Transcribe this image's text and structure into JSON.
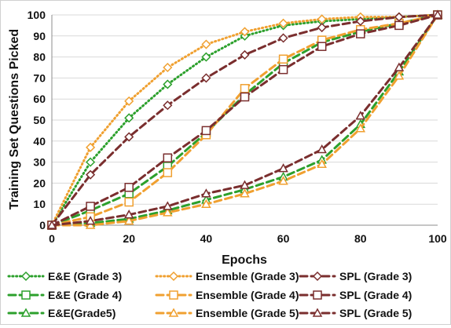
{
  "chart_data": {
    "type": "line",
    "xlabel": "Epochs",
    "ylabel": "Training Set Questions Picked",
    "xlim": [
      0,
      100
    ],
    "ylim": [
      0,
      100
    ],
    "x_ticks": [
      "0",
      "20",
      "40",
      "60",
      "80",
      "100"
    ],
    "y_ticks": [
      "0",
      "10",
      "20",
      "30",
      "40",
      "50",
      "60",
      "70",
      "80",
      "90",
      "100"
    ],
    "grid": "horizontal",
    "legend_position": "bottom",
    "x": [
      0,
      10,
      20,
      30,
      40,
      50,
      60,
      70,
      80,
      90,
      100
    ],
    "series": [
      {
        "name": "E&E (Grade 3)",
        "color": "#2ca02c",
        "dash": "dotted",
        "marker": "diamond",
        "values": [
          0,
          30,
          51,
          67,
          80,
          90,
          95,
          97,
          98,
          99,
          100
        ]
      },
      {
        "name": "E&E (Grade 4)",
        "color": "#2ca02c",
        "dash": "dashed",
        "marker": "square",
        "values": [
          0,
          7,
          15,
          28,
          44,
          62,
          77,
          87,
          92,
          96,
          100
        ]
      },
      {
        "name": "E&E(Grade5)",
        "color": "#2ca02c",
        "dash": "dashed",
        "marker": "triangle",
        "values": [
          0,
          1,
          3,
          7,
          12,
          17,
          23,
          31,
          48,
          73,
          100
        ]
      },
      {
        "name": "Ensemble (Grade 3)",
        "color": "#f0a030",
        "dash": "dotted",
        "marker": "diamond",
        "values": [
          0,
          37,
          59,
          75,
          86,
          92,
          96,
          98,
          99,
          99,
          100
        ]
      },
      {
        "name": "Ensemble (Grade 4)",
        "color": "#f0a030",
        "dash": "dashed",
        "marker": "square",
        "values": [
          0,
          4,
          11,
          25,
          43,
          65,
          79,
          88,
          93,
          96,
          100
        ]
      },
      {
        "name": "Ensemble (Grade 5)",
        "color": "#f0a030",
        "dash": "dashed",
        "marker": "triangle",
        "values": [
          0,
          0,
          2,
          6,
          10,
          15,
          21,
          29,
          46,
          71,
          100
        ]
      },
      {
        "name": "SPL (Grade 3)",
        "color": "#7a2e2e",
        "dash": "dashed",
        "marker": "diamond",
        "values": [
          0,
          24,
          42,
          57,
          70,
          81,
          89,
          94,
          97,
          99,
          100
        ]
      },
      {
        "name": "SPL (Grade 4)",
        "color": "#7a2e2e",
        "dash": "dashed",
        "marker": "square",
        "values": [
          0,
          9,
          18,
          32,
          45,
          61,
          74,
          85,
          91,
          95,
          100
        ]
      },
      {
        "name": "SPL (Grade 5)",
        "color": "#7a2e2e",
        "dash": "dashed",
        "marker": "triangle",
        "values": [
          0,
          2,
          5,
          9,
          15,
          19,
          27,
          36,
          52,
          75,
          100
        ]
      }
    ]
  }
}
